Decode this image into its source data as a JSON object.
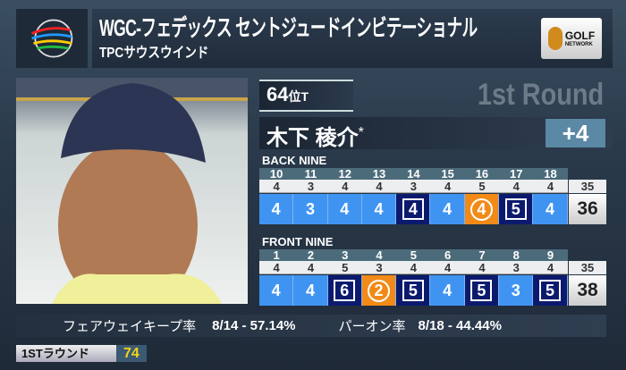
{
  "header": {
    "logo_text": "WORLD GOLF CHAMPIONSHIPS",
    "title": "WGC-フェデックス セントジュードインビテーショナル",
    "course": "TPCサウスウインド",
    "network_logo": "GOLF NETWORK"
  },
  "player": {
    "rank": "64",
    "rank_suffix": "位T",
    "round": "1st Round",
    "name": "木下 稜介",
    "mark": "*",
    "to_par": "+4"
  },
  "back_nine": {
    "label": "BACK NINE",
    "holes": [
      "10",
      "11",
      "12",
      "13",
      "14",
      "15",
      "16",
      "17",
      "18"
    ],
    "pars": [
      "4",
      "3",
      "4",
      "4",
      "3",
      "4",
      "5",
      "4",
      "4"
    ],
    "scores": [
      "4",
      "3",
      "4",
      "4",
      "4",
      "4",
      "4",
      "5",
      "4"
    ],
    "types": [
      "par",
      "par",
      "par",
      "par",
      "bogey",
      "par",
      "birdie",
      "bogey",
      "par"
    ],
    "par_total": "35",
    "score_total": "36"
  },
  "front_nine": {
    "label": "FRONT NINE",
    "holes": [
      "1",
      "2",
      "3",
      "4",
      "5",
      "6",
      "7",
      "8",
      "9"
    ],
    "pars": [
      "4",
      "4",
      "5",
      "3",
      "4",
      "4",
      "4",
      "3",
      "4"
    ],
    "scores": [
      "4",
      "4",
      "6",
      "2",
      "5",
      "4",
      "5",
      "3",
      "5"
    ],
    "types": [
      "par",
      "par",
      "bogey",
      "birdie",
      "bogey",
      "par",
      "bogey",
      "par",
      "bogey"
    ],
    "par_total": "35",
    "score_total": "38"
  },
  "stats": {
    "fairway_label": "フェアウェイキープ率",
    "fairway_value": "8/14 - 57.14%",
    "gir_label": "パーオン率",
    "gir_value": "8/18 - 44.44%"
  },
  "round_badge": {
    "label": "1STラウンド",
    "score": "74"
  },
  "colors": {
    "par": "#3f94f2",
    "bogey": "#0c1a6e",
    "birdie": "#f28a17",
    "to_par_box": "#5b88a4"
  }
}
